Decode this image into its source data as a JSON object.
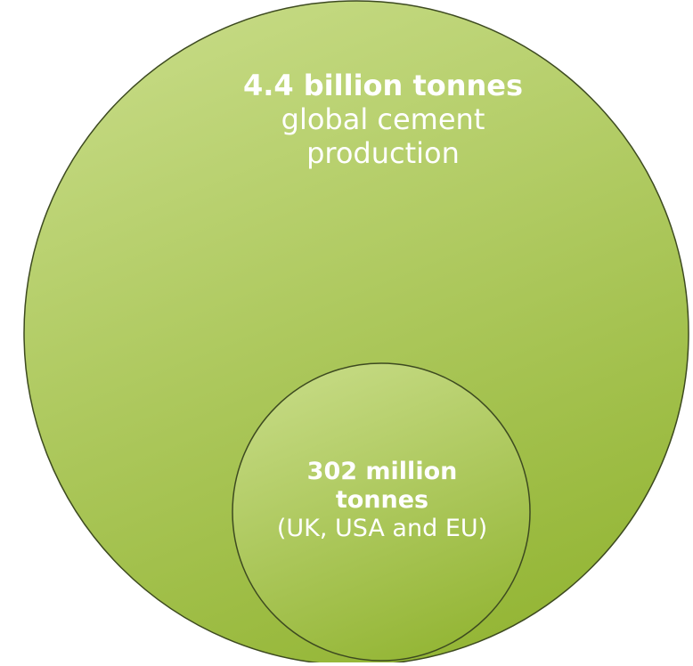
{
  "colors": {
    "fill_light": "#c5da83",
    "fill_dark": "#93b534",
    "outline": "#3d4a20",
    "text": "#ffffff"
  },
  "chart_data": {
    "type": "nested-circles",
    "title": "",
    "circles": [
      {
        "value": 4.4,
        "unit": "billion tonnes",
        "value_label": "4.4 billion tonnes",
        "description": "global cement production"
      },
      {
        "value": 302,
        "unit": "million tonnes",
        "value_label": "302 million tonnes",
        "description": "(UK, USA and EU)"
      }
    ]
  }
}
